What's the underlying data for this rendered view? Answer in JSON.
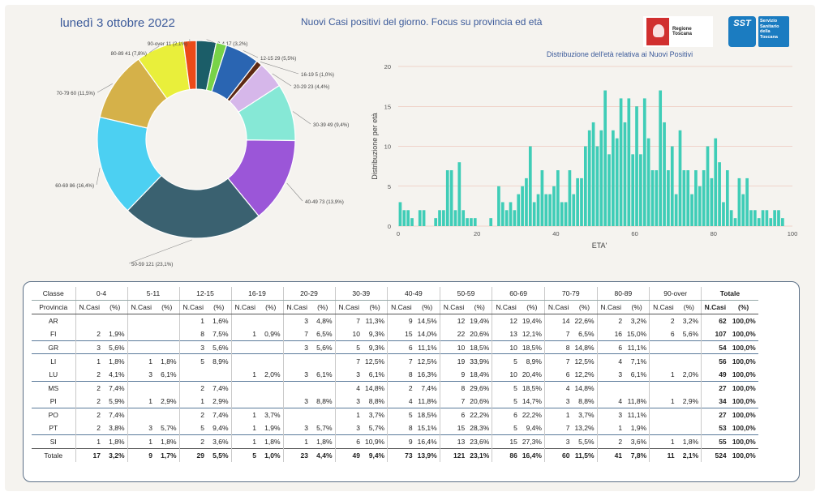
{
  "header": {
    "date": "lunedì 3 ottobre 2022",
    "title": "Nuovi Casi positivi del giorno. Focus su provincia ed età",
    "logo_rt_text": "Regione Toscana",
    "logo_sst_mark": "SST",
    "logo_sst_text": "Servizio Sanitario della Toscana"
  },
  "colors": {
    "bar": "#3fcdb7",
    "gridline": "#e9b3a6",
    "text": "#444444",
    "title": "#3b5a9a"
  },
  "chart_data": [
    {
      "type": "pie",
      "variant": "donut",
      "order": "clockwise from top",
      "slices": [
        {
          "label": "0-4 17 (3,2%)",
          "value": 17,
          "color": "#1b5d68"
        },
        {
          "label": "5-11",
          "value": 9,
          "color": "#78d348"
        },
        {
          "label": "12-15 29 (5,5%)",
          "value": 29,
          "color": "#2a65b2"
        },
        {
          "label": "16-19 5 (1,0%)",
          "value": 5,
          "color": "#5e2a14"
        },
        {
          "label": "20-29 23 (4,4%)",
          "value": 23,
          "color": "#d6b7ea"
        },
        {
          "label": "30-39 49 (9,4%)",
          "value": 49,
          "color": "#86e8d6"
        },
        {
          "label": "40-49 73 (13,9%)",
          "value": 73,
          "color": "#9b56d8"
        },
        {
          "label": "50-59 121 (23,1%)",
          "value": 121,
          "color": "#3a6170"
        },
        {
          "label": "60-69 86 (16,4%)",
          "value": 86,
          "color": "#4cd0f2"
        },
        {
          "label": "70-79 60 (11,5%)",
          "value": 60,
          "color": "#d5b149"
        },
        {
          "label": "80-89 41 (7,8%)",
          "value": 41,
          "color": "#e9ef3b"
        },
        {
          "label": "90-over 11 (2,1%)",
          "value": 11,
          "color": "#ec4a18"
        }
      ]
    },
    {
      "type": "bar",
      "title": "Distribuzione dell'età relativa ai Nuovi Positivi",
      "xlabel": "ETA'",
      "ylabel": "Distribuzione per età",
      "xlim": [
        0,
        100
      ],
      "ylim": [
        0,
        20
      ],
      "xticks": [
        0,
        20,
        40,
        60,
        80,
        100
      ],
      "yticks": [
        0,
        5,
        10,
        15,
        20
      ],
      "grid": true,
      "x": [
        0,
        1,
        2,
        3,
        4,
        5,
        6,
        7,
        8,
        9,
        10,
        11,
        12,
        13,
        14,
        15,
        16,
        17,
        18,
        19,
        20,
        21,
        22,
        23,
        24,
        25,
        26,
        27,
        28,
        29,
        30,
        31,
        32,
        33,
        34,
        35,
        36,
        37,
        38,
        39,
        40,
        41,
        42,
        43,
        44,
        45,
        46,
        47,
        48,
        49,
        50,
        51,
        52,
        53,
        54,
        55,
        56,
        57,
        58,
        59,
        60,
        61,
        62,
        63,
        64,
        65,
        66,
        67,
        68,
        69,
        70,
        71,
        72,
        73,
        74,
        75,
        76,
        77,
        78,
        79,
        80,
        81,
        82,
        83,
        84,
        85,
        86,
        87,
        88,
        89,
        90,
        91,
        92,
        93,
        94,
        95,
        96,
        97
      ],
      "values": [
        3,
        2,
        2,
        1,
        0,
        2,
        2,
        0,
        0,
        1,
        2,
        2,
        7,
        7,
        2,
        8,
        2,
        1,
        1,
        1,
        0,
        0,
        0,
        1,
        0,
        5,
        3,
        2,
        3,
        2,
        4,
        5,
        6,
        10,
        3,
        4,
        7,
        4,
        4,
        5,
        7,
        3,
        3,
        7,
        4,
        6,
        6,
        10,
        12,
        13,
        10,
        12,
        17,
        9,
        12,
        11,
        16,
        13,
        16,
        9,
        15,
        9,
        16,
        11,
        7,
        7,
        17,
        13,
        7,
        10,
        4,
        12,
        7,
        7,
        4,
        7,
        5,
        7,
        10,
        6,
        11,
        8,
        3,
        7,
        2,
        1,
        6,
        4,
        6,
        2,
        2,
        1,
        2,
        2,
        1,
        2,
        2,
        1
      ]
    },
    {
      "type": "table",
      "columns": [
        "Classe",
        "0-4",
        "5-11",
        "12-15",
        "16-19",
        "20-29",
        "30-39",
        "40-49",
        "50-59",
        "60-69",
        "70-79",
        "80-89",
        "90-over",
        "Totale"
      ],
      "subheaders": [
        "Provincia",
        "N.Casi",
        "(%)"
      ],
      "rows": [
        {
          "prov": "AR",
          "cells": [
            [
              "",
              ""
            ],
            [
              "",
              ""
            ],
            [
              "1",
              "1,6%"
            ],
            [
              "",
              ""
            ],
            [
              "3",
              "4,8%"
            ],
            [
              "7",
              "11,3%"
            ],
            [
              "9",
              "14,5%"
            ],
            [
              "12",
              "19,4%"
            ],
            [
              "12",
              "19,4%"
            ],
            [
              "14",
              "22,6%"
            ],
            [
              "2",
              "3,2%"
            ],
            [
              "2",
              "3,2%"
            ]
          ],
          "total": [
            "62",
            "100,0%"
          ]
        },
        {
          "prov": "FI",
          "cells": [
            [
              "2",
              "1,9%"
            ],
            [
              "",
              ""
            ],
            [
              "8",
              "7,5%"
            ],
            [
              "1",
              "0,9%"
            ],
            [
              "7",
              "6,5%"
            ],
            [
              "10",
              "9,3%"
            ],
            [
              "15",
              "14,0%"
            ],
            [
              "22",
              "20,6%"
            ],
            [
              "13",
              "12,1%"
            ],
            [
              "7",
              "6,5%"
            ],
            [
              "16",
              "15,0%"
            ],
            [
              "6",
              "5,6%"
            ]
          ],
          "total": [
            "107",
            "100,0%"
          ]
        },
        {
          "prov": "GR",
          "cells": [
            [
              "3",
              "5,6%"
            ],
            [
              "",
              ""
            ],
            [
              "3",
              "5,6%"
            ],
            [
              "",
              ""
            ],
            [
              "3",
              "5,6%"
            ],
            [
              "5",
              "9,3%"
            ],
            [
              "6",
              "11,1%"
            ],
            [
              "10",
              "18,5%"
            ],
            [
              "10",
              "18,5%"
            ],
            [
              "8",
              "14,8%"
            ],
            [
              "6",
              "11,1%"
            ],
            [
              "",
              ""
            ]
          ],
          "total": [
            "54",
            "100,0%"
          ]
        },
        {
          "prov": "LI",
          "cells": [
            [
              "1",
              "1,8%"
            ],
            [
              "1",
              "1,8%"
            ],
            [
              "5",
              "8,9%"
            ],
            [
              "",
              ""
            ],
            [
              "",
              ""
            ],
            [
              "7",
              "12,5%"
            ],
            [
              "7",
              "12,5%"
            ],
            [
              "19",
              "33,9%"
            ],
            [
              "5",
              "8,9%"
            ],
            [
              "7",
              "12,5%"
            ],
            [
              "4",
              "7,1%"
            ],
            [
              "",
              ""
            ]
          ],
          "total": [
            "56",
            "100,0%"
          ]
        },
        {
          "prov": "LU",
          "cells": [
            [
              "2",
              "4,1%"
            ],
            [
              "3",
              "6,1%"
            ],
            [
              "",
              ""
            ],
            [
              "1",
              "2,0%"
            ],
            [
              "3",
              "6,1%"
            ],
            [
              "3",
              "6,1%"
            ],
            [
              "8",
              "16,3%"
            ],
            [
              "9",
              "18,4%"
            ],
            [
              "10",
              "20,4%"
            ],
            [
              "6",
              "12,2%"
            ],
            [
              "3",
              "6,1%"
            ],
            [
              "1",
              "2,0%"
            ]
          ],
          "total": [
            "49",
            "100,0%"
          ]
        },
        {
          "prov": "MS",
          "cells": [
            [
              "2",
              "7,4%"
            ],
            [
              "",
              ""
            ],
            [
              "2",
              "7,4%"
            ],
            [
              "",
              ""
            ],
            [
              "",
              ""
            ],
            [
              "4",
              "14,8%"
            ],
            [
              "2",
              "7,4%"
            ],
            [
              "8",
              "29,6%"
            ],
            [
              "5",
              "18,5%"
            ],
            [
              "4",
              "14,8%"
            ],
            [
              "",
              ""
            ],
            [
              "",
              ""
            ]
          ],
          "total": [
            "27",
            "100,0%"
          ]
        },
        {
          "prov": "PI",
          "cells": [
            [
              "2",
              "5,9%"
            ],
            [
              "1",
              "2,9%"
            ],
            [
              "1",
              "2,9%"
            ],
            [
              "",
              ""
            ],
            [
              "3",
              "8,8%"
            ],
            [
              "3",
              "8,8%"
            ],
            [
              "4",
              "11,8%"
            ],
            [
              "7",
              "20,6%"
            ],
            [
              "5",
              "14,7%"
            ],
            [
              "3",
              "8,8%"
            ],
            [
              "4",
              "11,8%"
            ],
            [
              "1",
              "2,9%"
            ]
          ],
          "total": [
            "34",
            "100,0%"
          ]
        },
        {
          "prov": "PO",
          "cells": [
            [
              "2",
              "7,4%"
            ],
            [
              "",
              ""
            ],
            [
              "2",
              "7,4%"
            ],
            [
              "1",
              "3,7%"
            ],
            [
              "",
              ""
            ],
            [
              "1",
              "3,7%"
            ],
            [
              "5",
              "18,5%"
            ],
            [
              "6",
              "22,2%"
            ],
            [
              "6",
              "22,2%"
            ],
            [
              "1",
              "3,7%"
            ],
            [
              "3",
              "11,1%"
            ],
            [
              "",
              ""
            ]
          ],
          "total": [
            "27",
            "100,0%"
          ]
        },
        {
          "prov": "PT",
          "cells": [
            [
              "2",
              "3,8%"
            ],
            [
              "3",
              "5,7%"
            ],
            [
              "5",
              "9,4%"
            ],
            [
              "1",
              "1,9%"
            ],
            [
              "3",
              "5,7%"
            ],
            [
              "3",
              "5,7%"
            ],
            [
              "8",
              "15,1%"
            ],
            [
              "15",
              "28,3%"
            ],
            [
              "5",
              "9,4%"
            ],
            [
              "7",
              "13,2%"
            ],
            [
              "1",
              "1,9%"
            ],
            [
              "",
              ""
            ]
          ],
          "total": [
            "53",
            "100,0%"
          ]
        },
        {
          "prov": "SI",
          "cells": [
            [
              "1",
              "1,8%"
            ],
            [
              "1",
              "1,8%"
            ],
            [
              "2",
              "3,6%"
            ],
            [
              "1",
              "1,8%"
            ],
            [
              "1",
              "1,8%"
            ],
            [
              "6",
              "10,9%"
            ],
            [
              "9",
              "16,4%"
            ],
            [
              "13",
              "23,6%"
            ],
            [
              "15",
              "27,3%"
            ],
            [
              "3",
              "5,5%"
            ],
            [
              "2",
              "3,6%"
            ],
            [
              "1",
              "1,8%"
            ]
          ],
          "total": [
            "55",
            "100,0%"
          ]
        },
        {
          "prov": "Totale",
          "cells": [
            [
              "17",
              "3,2%"
            ],
            [
              "9",
              "1,7%"
            ],
            [
              "29",
              "5,5%"
            ],
            [
              "5",
              "1,0%"
            ],
            [
              "23",
              "4,4%"
            ],
            [
              "49",
              "9,4%"
            ],
            [
              "73",
              "13,9%"
            ],
            [
              "121",
              "23,1%"
            ],
            [
              "86",
              "16,4%"
            ],
            [
              "60",
              "11,5%"
            ],
            [
              "41",
              "7,8%"
            ],
            [
              "11",
              "2,1%"
            ]
          ],
          "total": [
            "524",
            "100,0%"
          ]
        }
      ]
    }
  ]
}
